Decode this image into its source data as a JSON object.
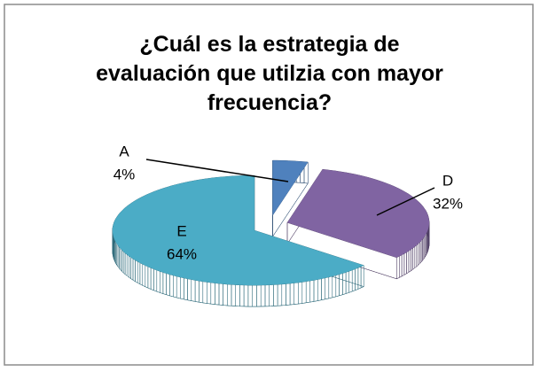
{
  "chart_data": {
    "type": "pie3d",
    "title": "¿Cuál es la estrategia de evaluación que utilzia con mayor frecuencia?",
    "categories": [
      "A",
      "D",
      "E"
    ],
    "values": [
      4,
      32,
      64
    ],
    "value_labels": [
      "4%",
      "32%",
      "64%"
    ],
    "colors": [
      "#4F81BD",
      "#8064A2",
      "#4BACC6"
    ]
  }
}
